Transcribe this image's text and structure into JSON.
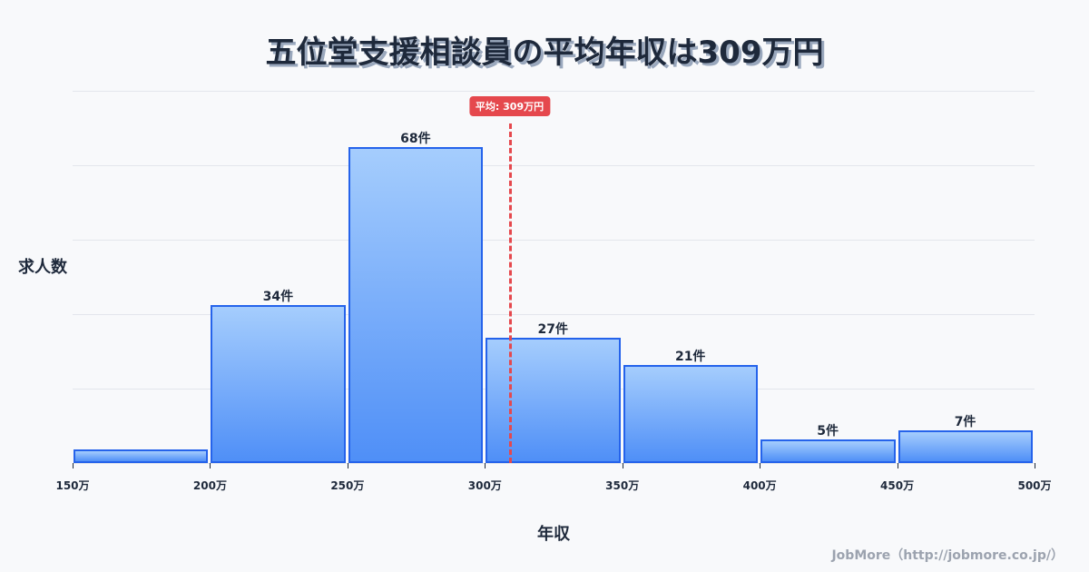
{
  "title": "五位堂支援相談員の平均年収は309万円",
  "y_axis_label": "求人数",
  "x_axis_label": "年収",
  "credit": "JobMore（http://jobmore.co.jp/）",
  "average_badge": "平均: 309万円",
  "colors": {
    "bar_border": "#2563eb",
    "bar_top": "#a5cdfd",
    "bar_bottom": "#4f8ff7",
    "average_line": "#e5484d",
    "background": "#f8f9fb"
  },
  "ticks": [
    "150万",
    "200万",
    "250万",
    "300万",
    "350万",
    "400万",
    "450万",
    "500万"
  ],
  "bars": [
    {
      "range": "150万-200万",
      "value": 3,
      "label": ""
    },
    {
      "range": "200万-250万",
      "value": 34,
      "label": "34件"
    },
    {
      "range": "250万-300万",
      "value": 68,
      "label": "68件"
    },
    {
      "range": "300万-350万",
      "value": 27,
      "label": "27件"
    },
    {
      "range": "350万-400万",
      "value": 21,
      "label": "21件"
    },
    {
      "range": "400万-450万",
      "value": 5,
      "label": "5件"
    },
    {
      "range": "450万-500万",
      "value": 7,
      "label": "7件"
    }
  ],
  "chart_data": {
    "type": "bar",
    "title": "五位堂支援相談員の平均年収は309万円",
    "xlabel": "年収",
    "ylabel": "求人数",
    "categories": [
      "150万-200万",
      "200万-250万",
      "250万-300万",
      "300万-350万",
      "350万-400万",
      "400万-450万",
      "450万-500万"
    ],
    "values": [
      3,
      34,
      68,
      27,
      21,
      5,
      7
    ],
    "x_ticks": [
      "150万",
      "200万",
      "250万",
      "300万",
      "350万",
      "400万",
      "450万",
      "500万"
    ],
    "xlim": [
      150,
      500
    ],
    "ylim": [
      0,
      80
    ],
    "grid": true,
    "annotations": [
      {
        "type": "vline",
        "x": 309,
        "label": "平均: 309万円",
        "color": "#e5484d",
        "style": "dashed"
      }
    ],
    "legend": null
  }
}
